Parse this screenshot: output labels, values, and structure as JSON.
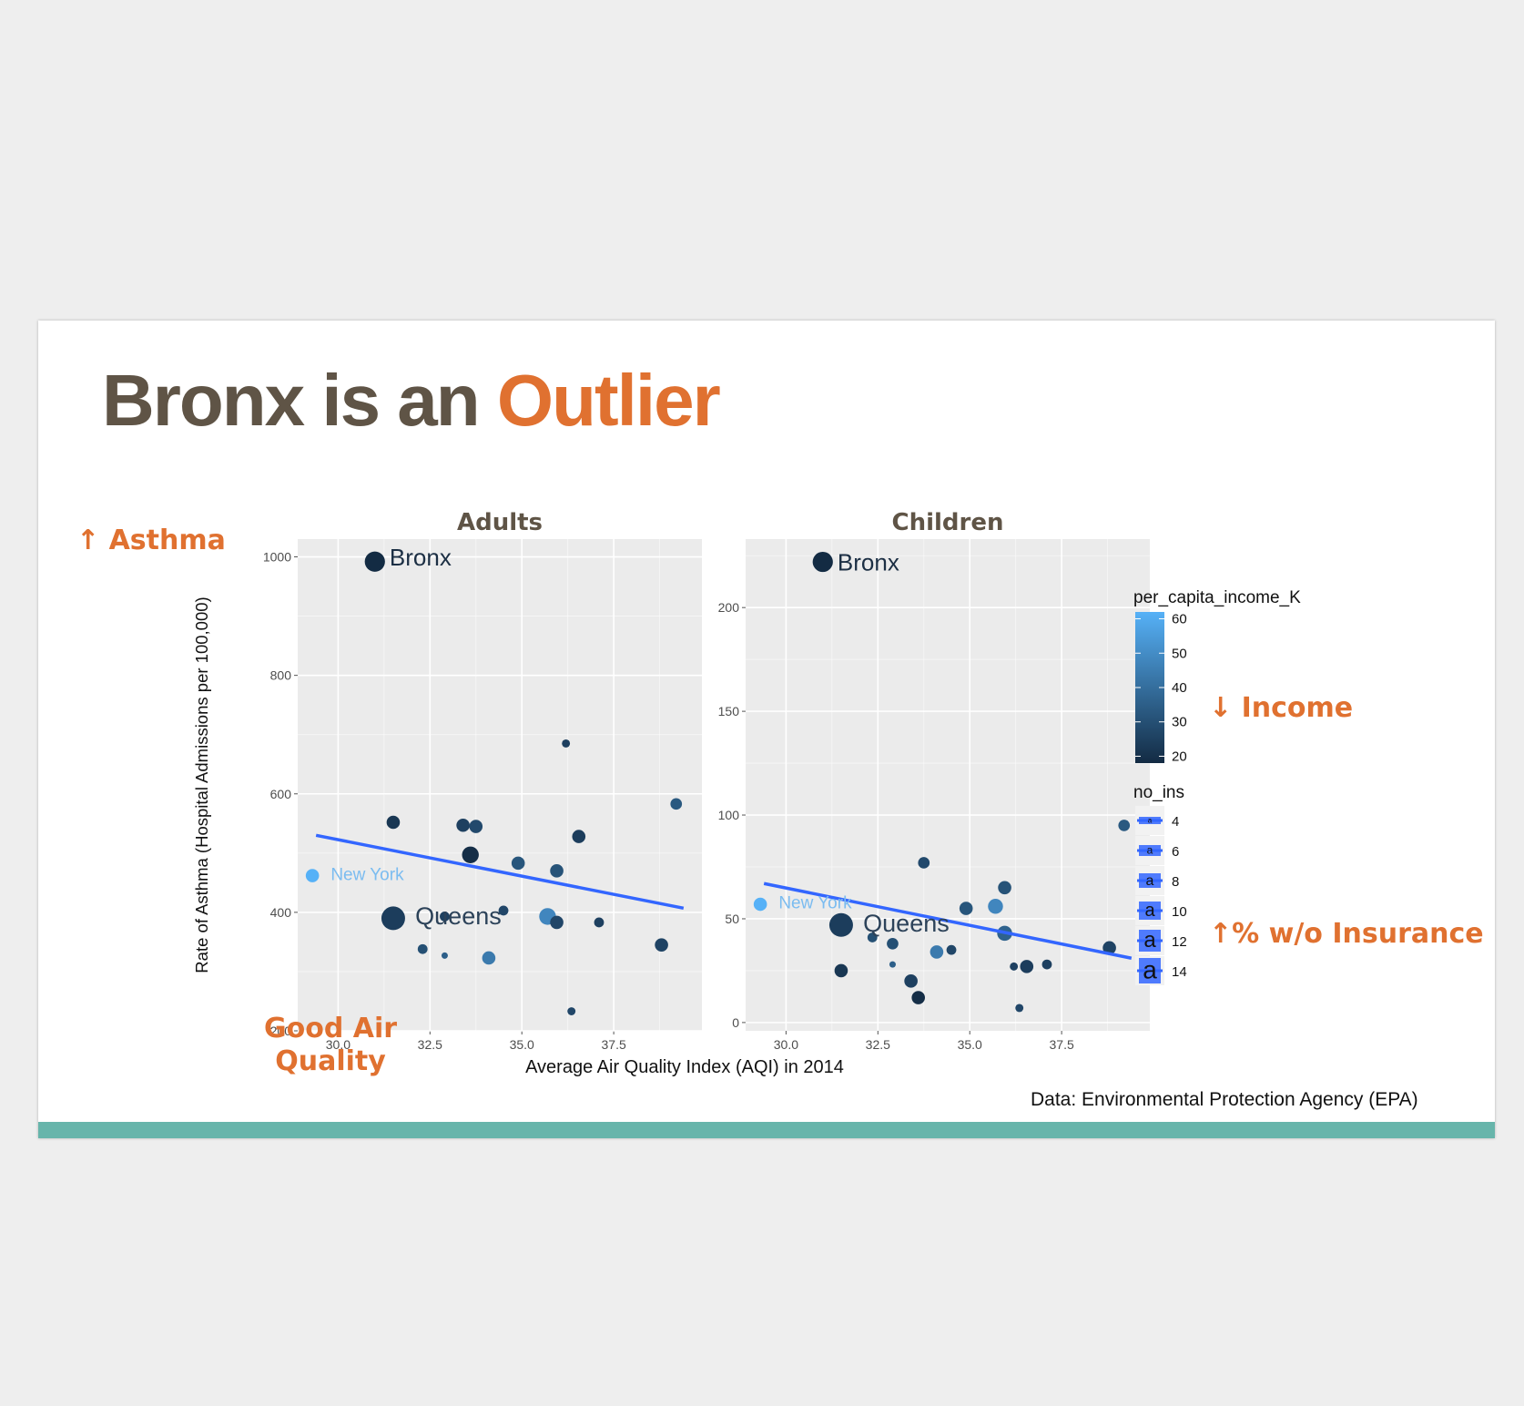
{
  "slide": {
    "title_part1": "Bronx is an ",
    "title_part2": "Outlier",
    "annotations": {
      "asthma": "↑ Asthma",
      "good_air_line1": "Good Air",
      "good_air_line2": "Quality",
      "income": "↓ Income",
      "insurance": "↑% w/o Insurance"
    },
    "source": "Data: Environmental Protection Agency (EPA)",
    "colors": {
      "background": "#eeeeee",
      "slide": "#ffffff",
      "title_dark": "#5f5446",
      "accent_orange": "#e07130",
      "footer_bar": "#67b5ab",
      "panel_bg": "#ebebeb",
      "gridline": "#ffffff",
      "trend_line": "#3366ff",
      "income_low": "#132b43",
      "income_high": "#56b1f7"
    }
  },
  "chart_data": {
    "type": "scatter",
    "xlabel": "Average Air Quality Index (AQI) in 2014",
    "ylabel": "Rate of Asthma (Hospital Admissions per 100,000)",
    "xlim": [
      28.9,
      39.9
    ],
    "x_ticks": [
      30.0,
      32.5,
      35.0,
      37.5
    ],
    "x_tick_labels": [
      "30.0",
      "32.5",
      "35.0",
      "37.5"
    ],
    "grid": true,
    "panels": [
      {
        "title": "Adults",
        "ylim": [
          200,
          1030
        ],
        "y_ticks": [
          200,
          400,
          600,
          800,
          1000
        ],
        "y_tick_labels": [
          "200",
          "400",
          "600",
          "800",
          "1000"
        ],
        "trend": {
          "x": [
            29.4,
            39.4
          ],
          "y": [
            530,
            407
          ]
        },
        "labels": [
          {
            "text": "Bronx",
            "x": 31.4,
            "y": 1000,
            "color": "#1c2f44",
            "size": 26
          },
          {
            "text": "New York",
            "x": 29.8,
            "y": 465,
            "color": "#7bbcf0",
            "size": 19
          },
          {
            "text": "Queens",
            "x": 32.1,
            "y": 395,
            "color": "#2c4259",
            "size": 27
          }
        ],
        "points": [
          {
            "x": 31.0,
            "y": 992,
            "inc": 18,
            "ins": 12
          },
          {
            "x": 29.3,
            "y": 462,
            "inc": 62,
            "ins": 8
          },
          {
            "x": 31.5,
            "y": 390,
            "inc": 24,
            "ins": 14
          },
          {
            "x": 31.5,
            "y": 552,
            "inc": 22,
            "ins": 8
          },
          {
            "x": 32.3,
            "y": 338,
            "inc": 30,
            "ins": 6
          },
          {
            "x": 32.9,
            "y": 393,
            "inc": 25,
            "ins": 6
          },
          {
            "x": 32.9,
            "y": 327,
            "inc": 35,
            "ins": 4
          },
          {
            "x": 33.4,
            "y": 547,
            "inc": 25,
            "ins": 8
          },
          {
            "x": 33.6,
            "y": 497,
            "inc": 19,
            "ins": 10
          },
          {
            "x": 33.75,
            "y": 545,
            "inc": 28,
            "ins": 8
          },
          {
            "x": 34.1,
            "y": 323,
            "inc": 44,
            "ins": 8
          },
          {
            "x": 34.5,
            "y": 403,
            "inc": 27,
            "ins": 6
          },
          {
            "x": 34.9,
            "y": 483,
            "inc": 32,
            "ins": 8
          },
          {
            "x": 35.7,
            "y": 393,
            "inc": 48,
            "ins": 10
          },
          {
            "x": 35.95,
            "y": 470,
            "inc": 31,
            "ins": 8
          },
          {
            "x": 35.95,
            "y": 383,
            "inc": 27,
            "ins": 8
          },
          {
            "x": 36.2,
            "y": 685,
            "inc": 25,
            "ins": 5
          },
          {
            "x": 36.35,
            "y": 233,
            "inc": 27,
            "ins": 5
          },
          {
            "x": 36.55,
            "y": 528,
            "inc": 24,
            "ins": 8
          },
          {
            "x": 37.1,
            "y": 383,
            "inc": 25,
            "ins": 6
          },
          {
            "x": 38.8,
            "y": 345,
            "inc": 26,
            "ins": 8
          },
          {
            "x": 39.2,
            "y": 583,
            "inc": 33,
            "ins": 7
          }
        ]
      },
      {
        "title": "Children",
        "ylim": [
          -4,
          233
        ],
        "y_ticks": [
          0,
          50,
          100,
          150,
          200
        ],
        "y_tick_labels": [
          "0",
          "50",
          "100",
          "150",
          "200"
        ],
        "trend": {
          "x": [
            29.4,
            39.4
          ],
          "y": [
            67,
            31
          ]
        },
        "labels": [
          {
            "text": "Bronx",
            "x": 31.4,
            "y": 222,
            "color": "#1c2f44",
            "size": 26
          },
          {
            "text": "New York",
            "x": 29.8,
            "y": 58,
            "color": "#7bbcf0",
            "size": 19
          },
          {
            "text": "Queens",
            "x": 32.1,
            "y": 48,
            "color": "#2c4259",
            "size": 27
          }
        ],
        "points": [
          {
            "x": 31.0,
            "y": 222,
            "inc": 18,
            "ins": 12
          },
          {
            "x": 29.3,
            "y": 57,
            "inc": 62,
            "ins": 8
          },
          {
            "x": 31.5,
            "y": 47,
            "inc": 24,
            "ins": 14
          },
          {
            "x": 31.5,
            "y": 25,
            "inc": 22,
            "ins": 8
          },
          {
            "x": 32.35,
            "y": 41,
            "inc": 30,
            "ins": 6
          },
          {
            "x": 32.9,
            "y": 38,
            "inc": 30,
            "ins": 7
          },
          {
            "x": 32.9,
            "y": 28,
            "inc": 35,
            "ins": 4
          },
          {
            "x": 33.4,
            "y": 20,
            "inc": 25,
            "ins": 8
          },
          {
            "x": 33.6,
            "y": 12,
            "inc": 19,
            "ins": 8
          },
          {
            "x": 33.75,
            "y": 77,
            "inc": 28,
            "ins": 7
          },
          {
            "x": 34.1,
            "y": 34,
            "inc": 44,
            "ins": 8
          },
          {
            "x": 34.5,
            "y": 35,
            "inc": 27,
            "ins": 6
          },
          {
            "x": 34.9,
            "y": 55,
            "inc": 32,
            "ins": 8
          },
          {
            "x": 35.7,
            "y": 56,
            "inc": 48,
            "ins": 9
          },
          {
            "x": 35.95,
            "y": 65,
            "inc": 31,
            "ins": 8
          },
          {
            "x": 35.95,
            "y": 43,
            "inc": 36,
            "ins": 9
          },
          {
            "x": 36.2,
            "y": 27,
            "inc": 25,
            "ins": 5
          },
          {
            "x": 36.35,
            "y": 7,
            "inc": 27,
            "ins": 5
          },
          {
            "x": 36.55,
            "y": 27,
            "inc": 24,
            "ins": 8
          },
          {
            "x": 37.1,
            "y": 28,
            "inc": 25,
            "ins": 6
          },
          {
            "x": 38.8,
            "y": 36,
            "inc": 26,
            "ins": 8
          },
          {
            "x": 39.2,
            "y": 95,
            "inc": 33,
            "ins": 7
          }
        ]
      }
    ],
    "legend": {
      "position": "right",
      "color_title": "per_capita_income_K",
      "color_range": [
        18,
        62
      ],
      "color_ticks": [
        20,
        30,
        40,
        50,
        60
      ],
      "color_tick_labels": [
        "20",
        "30",
        "40",
        "50",
        "60"
      ],
      "size_title": "no_ins",
      "size_range": [
        4,
        14
      ],
      "size_breaks": [
        4,
        6,
        8,
        10,
        12,
        14
      ],
      "size_labels": [
        "4",
        "6",
        "8",
        "10",
        "12",
        "14"
      ],
      "key_glyph": "a"
    }
  }
}
